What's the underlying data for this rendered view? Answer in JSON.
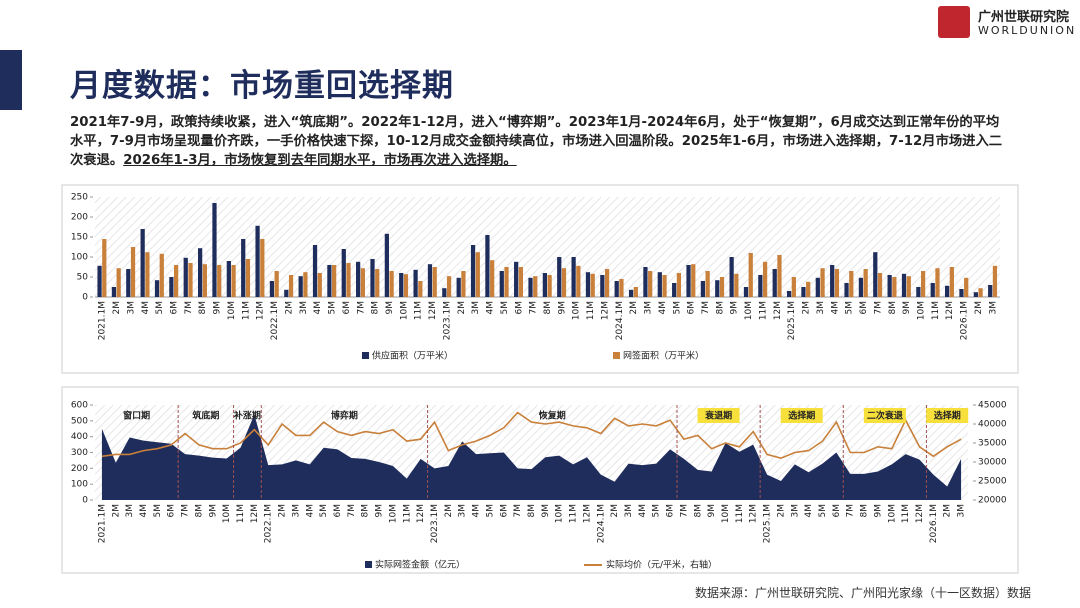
{
  "header": {
    "title": "月度数据：市场重回选择期",
    "logo_cn": "广州世联研究院",
    "logo_en": "WORLDUNION"
  },
  "text": {
    "main": "2021年7-9月，政策持续收紧，进入“筑底期”。2022年1-12月，进入“博弈期”。2023年1月-2024年6月，处于“恢复期”，6月成交达到正常年份的平均水平，7-9月市场呈现量价齐跌，一手价格快速下探，10-12月成交金额持续高位，市场进入回温阶段。2025年1-6月，市场进入选择期，7-12月市场进入二次衰退。",
    "underlined": "2026年1-3月，市场恢复到去年同期水平，市场再次进入选择期。"
  },
  "source": "数据来源：广州世联研究院、广州阳光家缘（十一区数据）数据",
  "chart_data": [
    {
      "type": "bar",
      "legend": "bottom",
      "grid": false,
      "categories": [
        "2021.1M",
        "2M",
        "3M",
        "4M",
        "5M",
        "6M",
        "7M",
        "8M",
        "9M",
        "10M",
        "11M",
        "12M",
        "2022.1M",
        "2M",
        "3M",
        "4M",
        "5M",
        "6M",
        "7M",
        "8M",
        "9M",
        "10M",
        "11M",
        "12M",
        "2023.1M",
        "2M",
        "3M",
        "4M",
        "5M",
        "6M",
        "7M",
        "8M",
        "9M",
        "10M",
        "11M",
        "12M",
        "2024.1M",
        "2M",
        "3M",
        "4M",
        "5M",
        "6M",
        "7M",
        "8M",
        "9M",
        "10M",
        "11M",
        "12M",
        "2025.1M",
        "2M",
        "3M",
        "4M",
        "5M",
        "6M",
        "7M",
        "8M",
        "9M",
        "10M",
        "11M",
        "12M",
        "2026.1M",
        "2M",
        "3M"
      ],
      "series": [
        {
          "name": "供应面积（万平米）",
          "color": "#1f2d5c",
          "values": [
            78,
            25,
            70,
            170,
            42,
            50,
            98,
            122,
            235,
            90,
            145,
            178,
            40,
            18,
            52,
            130,
            80,
            120,
            88,
            95,
            158,
            60,
            68,
            82,
            22,
            48,
            130,
            155,
            65,
            88,
            48,
            60,
            100,
            100,
            62,
            55,
            40,
            18,
            75,
            62,
            35,
            80,
            40,
            42,
            100,
            25,
            55,
            70,
            15,
            25,
            48,
            80,
            35,
            48,
            112,
            55,
            58,
            25,
            35,
            28,
            20,
            12,
            30
          ]
        },
        {
          "name": "网签面积（万平米）",
          "color": "#c8803a",
          "values": [
            145,
            72,
            125,
            112,
            108,
            80,
            85,
            82,
            80,
            80,
            95,
            145,
            65,
            55,
            62,
            60,
            80,
            85,
            72,
            70,
            65,
            57,
            40,
            75,
            52,
            65,
            112,
            92,
            75,
            75,
            52,
            55,
            72,
            78,
            58,
            70,
            45,
            25,
            65,
            55,
            60,
            82,
            65,
            50,
            58,
            110,
            88,
            105,
            50,
            38,
            72,
            70,
            65,
            70,
            60,
            50,
            52,
            65,
            72,
            75,
            48,
            22,
            78
          ]
        }
      ],
      "ylim": [
        0,
        250
      ],
      "yticks": [
        0,
        50,
        100,
        150,
        200,
        250
      ]
    },
    {
      "type": "combo",
      "legend": "bottom",
      "grid": false,
      "categories": [
        "2021.1M",
        "2M",
        "3M",
        "4M",
        "5M",
        "6M",
        "7M",
        "8M",
        "9M",
        "10M",
        "11M",
        "12M",
        "2022.1M",
        "2M",
        "3M",
        "4M",
        "5M",
        "6M",
        "7M",
        "8M",
        "9M",
        "10M",
        "11M",
        "12M",
        "2023.1M",
        "2M",
        "3M",
        "4M",
        "5M",
        "6M",
        "7M",
        "8M",
        "9M",
        "10M",
        "11M",
        "12M",
        "2024.1M",
        "2M",
        "3M",
        "4M",
        "5M",
        "6M",
        "7M",
        "8M",
        "9M",
        "10M",
        "11M",
        "12M",
        "2025.1M",
        "2M",
        "3M",
        "4M",
        "5M",
        "6M",
        "7M",
        "8M",
        "9M",
        "10M",
        "11M",
        "12M",
        "2026.1M",
        "2M",
        "3M"
      ],
      "series": [
        {
          "name": "实际网签金额（亿元）",
          "color": "#1f2d5c",
          "type": "area",
          "values": [
            450,
            235,
            395,
            375,
            365,
            355,
            290,
            280,
            268,
            262,
            330,
            540,
            220,
            225,
            250,
            225,
            330,
            320,
            265,
            260,
            240,
            215,
            135,
            260,
            200,
            215,
            370,
            290,
            295,
            300,
            200,
            195,
            270,
            280,
            225,
            270,
            160,
            115,
            230,
            220,
            230,
            320,
            260,
            190,
            180,
            360,
            305,
            350,
            160,
            120,
            225,
            175,
            230,
            300,
            165,
            165,
            180,
            225,
            290,
            255,
            160,
            85,
            260
          ]
        },
        {
          "name": "实际均价（元/平米，右轴）",
          "color": "#c8803a",
          "type": "line",
          "axis": "y2",
          "values": [
            31500,
            32000,
            32000,
            33000,
            33500,
            34500,
            37500,
            34500,
            33500,
            33500,
            35000,
            38500,
            34500,
            40000,
            37000,
            37000,
            40500,
            38000,
            37000,
            38000,
            37500,
            38500,
            35500,
            36000,
            40500,
            33000,
            34500,
            35500,
            37000,
            39000,
            43000,
            40500,
            40000,
            40500,
            39500,
            39000,
            37500,
            41500,
            39500,
            40000,
            39500,
            41000,
            36000,
            37000,
            33500,
            35000,
            34000,
            38000,
            32000,
            31000,
            32500,
            33000,
            35500,
            40500,
            32500,
            32500,
            34000,
            33500,
            41000,
            34000,
            31500,
            34000,
            36000
          ]
        }
      ],
      "ylim": [
        0,
        600
      ],
      "yticks": [
        0,
        100,
        200,
        300,
        400,
        500,
        600
      ],
      "y2lim": [
        20000,
        45000
      ],
      "y2ticks": [
        20000,
        25000,
        30000,
        35000,
        40000,
        45000
      ],
      "phases": [
        {
          "label": "窗口期",
          "highlight": false
        },
        {
          "label": "筑底期",
          "highlight": false
        },
        {
          "label": "补涨期",
          "highlight": false
        },
        {
          "label": "博弈期",
          "highlight": false
        },
        {
          "label": "恢复期",
          "highlight": false
        },
        {
          "label": "衰退期",
          "highlight": true
        },
        {
          "label": "选择期",
          "highlight": true
        },
        {
          "label": "二次衰退",
          "highlight": true
        },
        {
          "label": "选择期",
          "highlight": true
        }
      ]
    }
  ]
}
